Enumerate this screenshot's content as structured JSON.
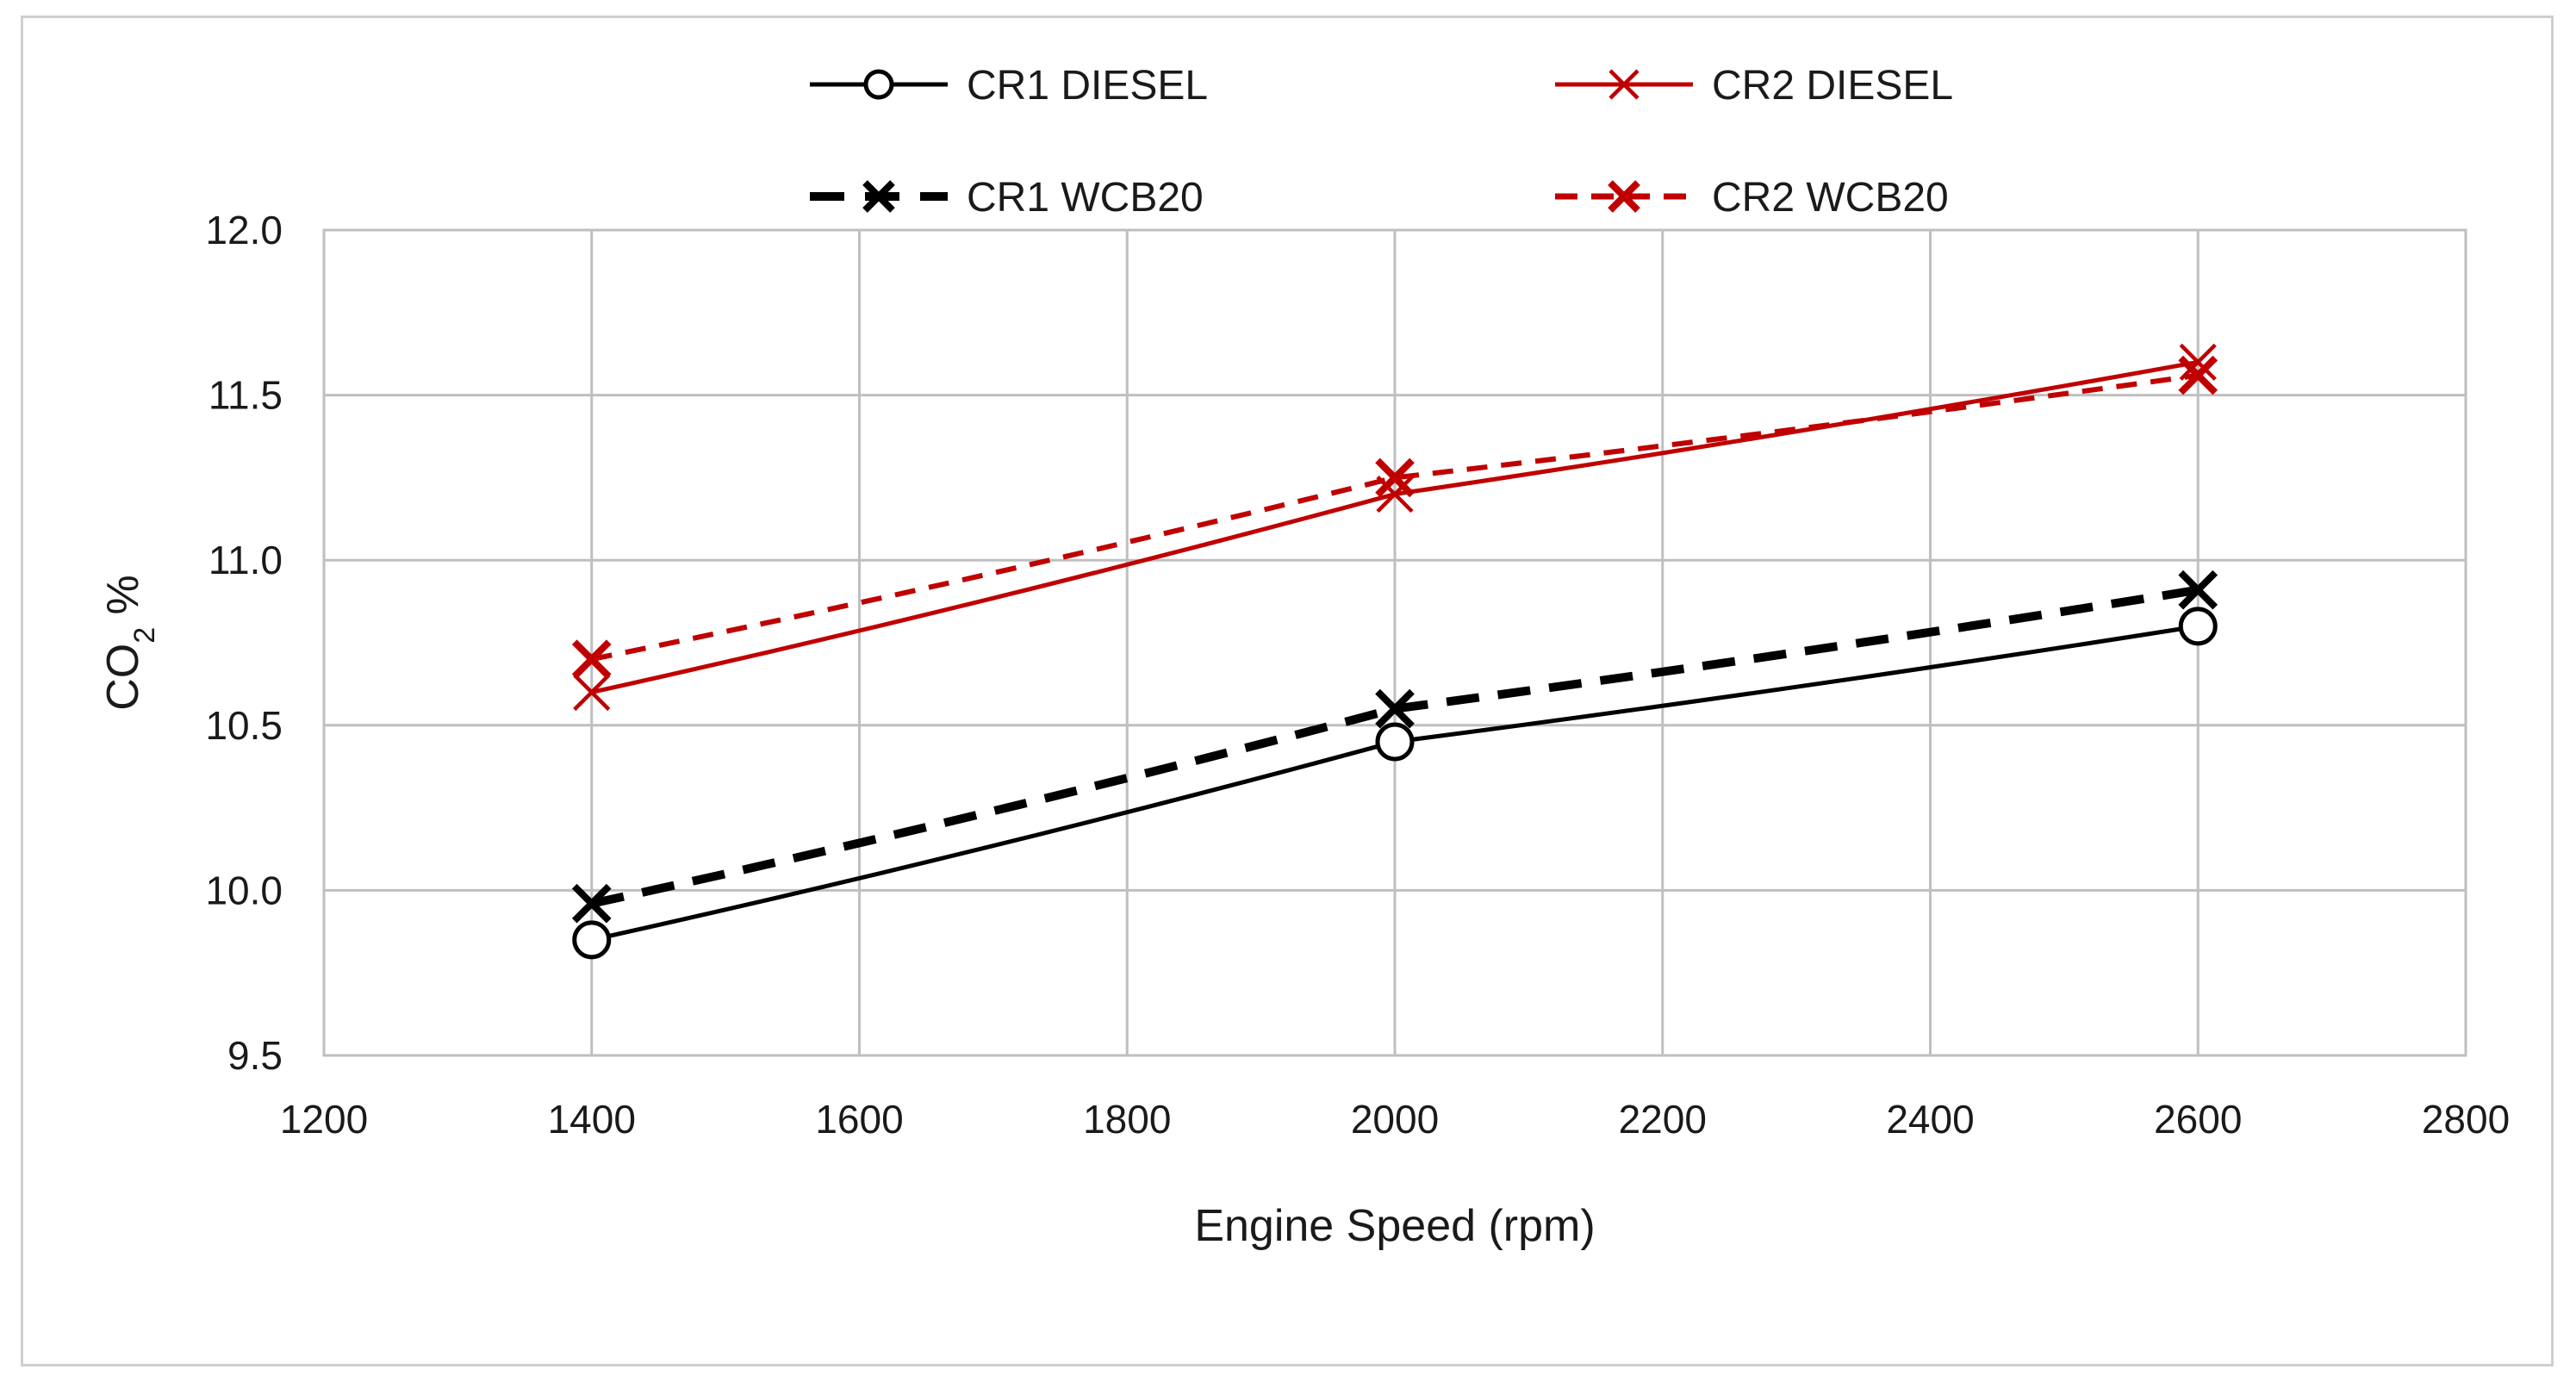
{
  "chart_data": {
    "type": "line",
    "title": "",
    "xlabel": "Engine Speed (rpm)",
    "ylabel_main": "CO",
    "ylabel_sub": "2",
    "ylabel_suffix": " %",
    "xlim": [
      1200,
      2800
    ],
    "ylim": [
      9.5,
      12.0
    ],
    "x_ticks": [
      1200,
      1400,
      1600,
      1800,
      2000,
      2200,
      2400,
      2600,
      2800
    ],
    "y_ticks": [
      9.5,
      10.0,
      10.5,
      11.0,
      11.5,
      12.0
    ],
    "x_tick_labels": [
      "1200",
      "1400",
      "1600",
      "1800",
      "2000",
      "2200",
      "2400",
      "2600",
      "2800"
    ],
    "y_tick_labels": [
      "9.5",
      "10.0",
      "10.5",
      "11.0",
      "11.5",
      "12.0"
    ],
    "grid": true,
    "legend_position": "top",
    "series": [
      {
        "name": "CR1 DIESEL",
        "x": [
          1400,
          2000,
          2600
        ],
        "values": [
          9.85,
          10.45,
          10.8
        ],
        "color": "#000000",
        "dash": "solid",
        "marker": "circle"
      },
      {
        "name": "CR2 DIESEL",
        "x": [
          1400,
          2000,
          2600
        ],
        "values": [
          10.6,
          11.2,
          11.6
        ],
        "color": "#c00000",
        "dash": "solid",
        "marker": "x"
      },
      {
        "name": "CR1 WCB20",
        "x": [
          1400,
          2000,
          2600
        ],
        "values": [
          9.96,
          10.55,
          10.91
        ],
        "color": "#000000",
        "dash": "dashed",
        "marker": "x-bold"
      },
      {
        "name": "CR2 WCB20",
        "x": [
          1400,
          2000,
          2600
        ],
        "values": [
          10.7,
          11.25,
          11.56
        ],
        "color": "#c00000",
        "dash": "dashed",
        "marker": "x-bold"
      }
    ]
  }
}
